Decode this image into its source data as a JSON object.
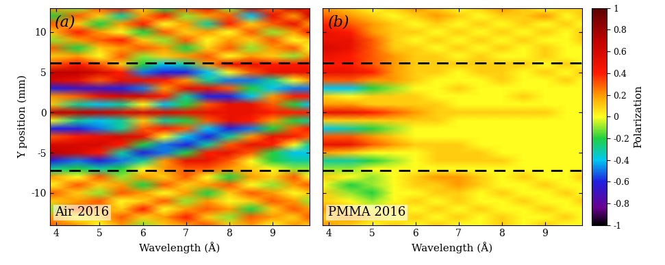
{
  "chart_data": [
    {
      "type": "heatmap",
      "panel_label": "(a)",
      "annotation": "Air 2016",
      "xlabel": "Wavelength (Å)",
      "ylabel": "Y position (mm)",
      "xlim": [
        3.85,
        9.85
      ],
      "ylim": [
        -14,
        13
      ],
      "xticks": [
        4,
        5,
        6,
        7,
        8,
        9
      ],
      "yticks": [
        -10,
        -5,
        0,
        5,
        10
      ],
      "hlines": [
        6.2,
        -7.2
      ],
      "x": [
        3.85,
        4.5,
        5,
        5.5,
        6,
        6.5,
        7,
        7.5,
        8,
        8.5,
        9,
        9.5,
        9.85
      ],
      "y": [
        13,
        12,
        11,
        10,
        9,
        8,
        7,
        6,
        5,
        4,
        3,
        2,
        1,
        0,
        -1,
        -2,
        -3,
        -4,
        -5,
        -6,
        -7,
        -8,
        -9,
        -10,
        -11,
        -12,
        -13,
        -14
      ],
      "cells": [
        [
          0.2,
          -0.1,
          0.3,
          0.4,
          0.1,
          -0.2,
          0.3,
          0.5,
          -0.1,
          0.6,
          0.3,
          0.7,
          0.5
        ],
        [
          -0.2,
          0.3,
          0.1,
          -0.3,
          0.2,
          0.4,
          -0.1,
          0.2,
          0.3,
          -0.4,
          0.5,
          0.2,
          0.6
        ],
        [
          0.3,
          0.1,
          -0.2,
          0.2,
          0.4,
          0.0,
          0.2,
          -0.3,
          0.4,
          0.1,
          0.3,
          0.5,
          0.2
        ],
        [
          0.1,
          0.4,
          0.2,
          0.0,
          -0.2,
          0.3,
          0.1,
          0.2,
          0.0,
          0.3,
          -0.1,
          0.2,
          0.4
        ],
        [
          -0.1,
          0.2,
          0.3,
          0.4,
          0.1,
          -0.1,
          0.3,
          0.0,
          0.2,
          0.1,
          0.3,
          0.0,
          0.1
        ],
        [
          0.3,
          -0.2,
          0.1,
          0.2,
          0.3,
          0.2,
          -0.2,
          0.1,
          0.3,
          -0.1,
          0.2,
          0.3,
          0.0
        ],
        [
          0.1,
          0.2,
          0.0,
          0.3,
          -0.1,
          0.1,
          0.2,
          0.3,
          0.0,
          0.2,
          0.1,
          -0.1,
          0.2
        ],
        [
          0.3,
          0.4,
          0.3,
          0.1,
          -0.2,
          -0.4,
          -0.3,
          0.2,
          0.5,
          0.5,
          0.4,
          0.4,
          0.4
        ],
        [
          0.7,
          0.7,
          0.6,
          0.4,
          -0.5,
          -0.6,
          -0.6,
          -0.4,
          0.0,
          0.3,
          0.5,
          0.5,
          0.5
        ],
        [
          0.6,
          0.5,
          0.3,
          0.5,
          0.5,
          0.4,
          0.2,
          -0.3,
          -0.5,
          -0.5,
          -0.3,
          0.0,
          0.2
        ],
        [
          -0.6,
          -0.7,
          -0.7,
          -0.6,
          -0.5,
          0.2,
          0.5,
          0.5,
          0.3,
          -0.2,
          -0.4,
          -0.5,
          -0.5
        ],
        [
          0.2,
          0.3,
          0.5,
          0.6,
          0.6,
          0.4,
          -0.3,
          -0.6,
          -0.6,
          -0.4,
          0.2,
          0.4,
          0.4
        ],
        [
          0.1,
          -0.3,
          -0.4,
          -0.3,
          0.0,
          -0.4,
          -0.2,
          0.3,
          0.5,
          0.5,
          0.3,
          -0.2,
          -0.4
        ],
        [
          0.7,
          0.7,
          0.7,
          0.6,
          0.6,
          0.6,
          0.5,
          0.5,
          0.5,
          0.5,
          0.4,
          0.4,
          0.4
        ],
        [
          0.0,
          -0.3,
          -0.4,
          -0.3,
          0.1,
          -0.3,
          -0.2,
          0.3,
          0.5,
          0.4,
          0.2,
          -0.2,
          -0.3
        ],
        [
          -0.6,
          -0.6,
          -0.5,
          -0.3,
          0.3,
          0.4,
          0.3,
          -0.4,
          -0.6,
          -0.5,
          -0.2,
          0.3,
          0.4
        ],
        [
          0.3,
          0.4,
          0.5,
          0.6,
          0.5,
          0.0,
          -0.4,
          -0.6,
          -0.3,
          0.2,
          0.5,
          0.4,
          0.3
        ],
        [
          0.6,
          0.6,
          0.6,
          0.4,
          -0.2,
          -0.5,
          -0.6,
          -0.3,
          0.3,
          0.5,
          0.4,
          0.0,
          -0.3
        ],
        [
          0.7,
          0.6,
          0.4,
          -0.3,
          -0.6,
          -0.5,
          -0.2,
          0.4,
          0.5,
          0.3,
          -0.2,
          -0.4,
          -0.4
        ],
        [
          -0.6,
          -0.5,
          -0.6,
          -0.5,
          -0.3,
          0.2,
          0.5,
          0.5,
          0.3,
          0.0,
          -0.2,
          -0.3,
          -0.3
        ],
        [
          -0.3,
          -0.2,
          -0.3,
          -0.2,
          0.0,
          0.2,
          0.3,
          0.3,
          0.2,
          0.1,
          0.0,
          -0.1,
          -0.1
        ],
        [
          0.2,
          0.0,
          0.3,
          -0.1,
          0.2,
          0.1,
          0.3,
          0.0,
          -0.2,
          0.2,
          0.1,
          0.3,
          0.0
        ],
        [
          0.0,
          0.3,
          0.1,
          0.2,
          -0.2,
          0.3,
          0.1,
          0.2,
          0.3,
          0.0,
          -0.1,
          0.2,
          0.3
        ],
        [
          0.3,
          0.1,
          -0.1,
          0.3,
          0.2,
          0.0,
          0.2,
          -0.2,
          0.1,
          0.3,
          0.2,
          0.0,
          0.1
        ],
        [
          0.1,
          0.2,
          0.3,
          0.0,
          0.1,
          0.3,
          -0.1,
          0.2,
          0.0,
          0.1,
          0.3,
          0.2,
          -0.1
        ],
        [
          -0.1,
          0.3,
          0.2,
          0.1,
          0.4,
          0.0,
          0.2,
          0.3,
          0.2,
          -0.2,
          0.1,
          0.3,
          0.2
        ],
        [
          0.2,
          0.0,
          0.1,
          0.3,
          0.1,
          0.2,
          0.4,
          0.1,
          -0.1,
          0.3,
          0.2,
          0.1,
          0.3
        ],
        [
          0.3,
          0.2,
          0.0,
          0.2,
          -0.1,
          0.1,
          0.2,
          0.3,
          0.1,
          0.2,
          0.0,
          0.2,
          0.1
        ]
      ]
    },
    {
      "type": "heatmap",
      "panel_label": "(b)",
      "annotation": "PMMA 2016",
      "xlabel": "Wavelength (Å)",
      "tick_labels": "x",
      "xlim": [
        3.85,
        9.85
      ],
      "ylim": [
        -14,
        13
      ],
      "xticks": [
        4,
        5,
        6,
        7,
        8,
        9
      ],
      "yticks": [
        -10,
        -5,
        0,
        5,
        10
      ],
      "hlines": [
        6.2,
        -7.2
      ],
      "x": [
        3.85,
        4.5,
        5,
        5.5,
        6,
        6.5,
        7,
        7.5,
        8,
        8.5,
        9,
        9.5,
        9.85
      ],
      "y": [
        13,
        12,
        11,
        10,
        9,
        8,
        7,
        6,
        5,
        4,
        3,
        2,
        1,
        0,
        -1,
        -2,
        -3,
        -4,
        -5,
        -6,
        -7,
        -8,
        -9,
        -10,
        -11,
        -12,
        -13,
        -14
      ],
      "cells": [
        [
          0.2,
          0.1,
          0.0,
          0.1,
          0.2,
          0.1,
          0.0,
          0.1,
          0.2,
          0.1,
          0.0,
          0.1,
          0.1
        ],
        [
          0.3,
          0.2,
          0.1,
          0.0,
          0.1,
          0.2,
          0.1,
          0.0,
          0.1,
          0.1,
          0.2,
          0.0,
          0.1
        ],
        [
          0.4,
          0.3,
          0.2,
          0.1,
          0.0,
          0.1,
          0.0,
          0.1,
          0.0,
          0.1,
          0.0,
          0.1,
          0.0
        ],
        [
          0.5,
          0.4,
          0.2,
          0.1,
          0.1,
          0.0,
          0.1,
          0.0,
          0.1,
          0.0,
          0.1,
          0.0,
          0.1
        ],
        [
          0.5,
          0.5,
          0.3,
          0.1,
          0.0,
          0.1,
          0.0,
          0.1,
          0.0,
          0.1,
          0.0,
          0.0,
          0.1
        ],
        [
          0.6,
          0.5,
          0.3,
          0.1,
          0.1,
          0.0,
          0.1,
          0.0,
          0.1,
          0.0,
          0.1,
          0.0,
          0.0
        ],
        [
          0.5,
          0.4,
          0.3,
          0.2,
          0.1,
          0.1,
          0.0,
          0.1,
          0.0,
          0.0,
          0.1,
          0.0,
          0.0
        ],
        [
          0.4,
          0.4,
          0.3,
          0.2,
          0.1,
          0.1,
          0.1,
          0.1,
          0.1,
          0.1,
          0.0,
          0.1,
          0.0
        ],
        [
          0.5,
          0.5,
          0.4,
          0.2,
          0.1,
          0.1,
          0.0,
          0.1,
          0.1,
          0.0,
          0.1,
          0.0,
          0.1
        ],
        [
          0.3,
          0.3,
          0.2,
          0.2,
          0.1,
          0.0,
          0.0,
          0.0,
          0.1,
          0.0,
          0.0,
          0.1,
          0.0
        ],
        [
          -0.4,
          -0.4,
          -0.2,
          -0.1,
          0.0,
          0.0,
          0.1,
          0.0,
          0.0,
          0.0,
          0.0,
          0.0,
          0.0
        ],
        [
          0.1,
          0.0,
          0.1,
          0.1,
          0.1,
          0.0,
          0.0,
          0.0,
          0.0,
          0.1,
          0.0,
          0.0,
          0.0
        ],
        [
          0.2,
          0.2,
          0.1,
          0.1,
          0.1,
          0.1,
          0.0,
          0.0,
          0.0,
          0.0,
          0.0,
          0.0,
          0.0
        ],
        [
          0.5,
          0.5,
          0.4,
          0.3,
          0.2,
          0.1,
          0.1,
          0.1,
          0.1,
          0.1,
          0.1,
          0.0,
          0.0
        ],
        [
          0.1,
          0.1,
          0.1,
          0.1,
          0.1,
          0.1,
          0.0,
          0.0,
          0.0,
          0.0,
          0.0,
          0.0,
          0.0
        ],
        [
          -0.4,
          -0.3,
          -0.2,
          -0.1,
          0.0,
          0.0,
          0.0,
          0.0,
          0.0,
          0.0,
          0.0,
          0.0,
          0.0
        ],
        [
          0.3,
          0.3,
          0.2,
          0.1,
          0.0,
          0.0,
          0.0,
          0.0,
          0.0,
          0.0,
          0.0,
          0.0,
          0.0
        ],
        [
          0.5,
          0.5,
          0.3,
          0.2,
          0.1,
          0.1,
          0.1,
          0.0,
          0.0,
          0.0,
          0.0,
          0.0,
          0.0
        ],
        [
          0.2,
          0.1,
          0.0,
          0.0,
          0.0,
          0.1,
          0.1,
          0.1,
          0.0,
          0.0,
          0.0,
          0.0,
          0.0
        ],
        [
          -0.3,
          -0.3,
          -0.2,
          -0.1,
          0.0,
          0.1,
          0.1,
          0.1,
          0.1,
          0.0,
          0.0,
          0.0,
          0.0
        ],
        [
          -0.1,
          -0.1,
          0.0,
          0.0,
          0.0,
          0.0,
          0.0,
          0.0,
          0.0,
          0.0,
          0.0,
          0.0,
          0.0
        ],
        [
          0.1,
          0.0,
          -0.1,
          0.0,
          0.1,
          0.2,
          0.2,
          0.1,
          0.0,
          0.1,
          0.0,
          0.0,
          0.1
        ],
        [
          0.0,
          -0.2,
          -0.1,
          0.0,
          0.1,
          0.1,
          0.2,
          0.1,
          0.0,
          0.0,
          0.1,
          0.0,
          0.0
        ],
        [
          0.1,
          -0.1,
          -0.2,
          0.0,
          0.0,
          0.1,
          0.1,
          0.0,
          0.1,
          0.0,
          0.0,
          0.1,
          0.0
        ],
        [
          0.1,
          0.0,
          -0.1,
          0.0,
          0.1,
          0.0,
          0.1,
          0.0,
          0.0,
          0.1,
          0.0,
          0.0,
          0.1
        ],
        [
          0.2,
          0.1,
          0.0,
          0.1,
          0.0,
          0.1,
          0.0,
          0.1,
          0.0,
          0.0,
          0.1,
          0.0,
          0.0
        ],
        [
          0.1,
          0.2,
          0.1,
          0.0,
          0.1,
          0.0,
          0.1,
          0.0,
          0.1,
          0.0,
          0.0,
          0.1,
          0.0
        ],
        [
          0.2,
          0.1,
          0.0,
          0.1,
          0.0,
          0.1,
          0.0,
          0.0,
          0.1,
          0.0,
          0.1,
          0.0,
          0.0
        ]
      ]
    }
  ],
  "colorbar": {
    "label": "Polarization",
    "range": [
      -1,
      1
    ],
    "ticks": [
      -1,
      -0.8,
      -0.6,
      -0.4,
      -0.2,
      0,
      0.2,
      0.4,
      0.6,
      0.8,
      1
    ]
  }
}
